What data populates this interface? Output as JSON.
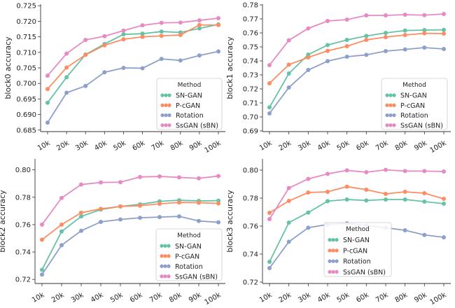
{
  "colors": {
    "SN-GAN": "#66c2a5",
    "P-cGAN": "#fc8d62",
    "Rotation": "#8da0cb",
    "SsGAN (sBN)": "#e78ac3"
  },
  "chart_data": [
    {
      "type": "line",
      "ylabel": "block0 accuracy",
      "categories": [
        "10k",
        "20k",
        "30k",
        "40k",
        "50k",
        "60k",
        "70k",
        "80k",
        "90k",
        "100k"
      ],
      "yticks": [
        0.685,
        0.69,
        0.695,
        0.7,
        0.705,
        0.71,
        0.715,
        0.72,
        0.725
      ],
      "ytick_labels": [
        "0.685",
        "0.690",
        "0.695",
        "0.700",
        "0.705",
        "0.710",
        "0.715",
        "0.720",
        "0.725"
      ],
      "ylim": [
        0.6845,
        0.7255
      ],
      "legend": {
        "title": "Method",
        "position": "bottom-right"
      },
      "series": [
        {
          "name": "SN-GAN",
          "values": [
            0.6938,
            0.702,
            0.7093,
            0.7127,
            0.7158,
            0.716,
            0.7167,
            0.7164,
            0.7177,
            0.719
          ]
        },
        {
          "name": "P-cGAN",
          "values": [
            0.6982,
            0.7051,
            0.7092,
            0.7123,
            0.7142,
            0.715,
            0.7153,
            0.7156,
            0.7188,
            0.7188
          ]
        },
        {
          "name": "Rotation",
          "values": [
            0.6874,
            0.697,
            0.6992,
            0.7036,
            0.705,
            0.7049,
            0.7079,
            0.7074,
            0.709,
            0.7103
          ]
        },
        {
          "name": "SsGAN (sBN)",
          "values": [
            0.7025,
            0.7096,
            0.714,
            0.7152,
            0.717,
            0.7187,
            0.7195,
            0.7196,
            0.7203,
            0.721
          ]
        }
      ]
    },
    {
      "type": "line",
      "ylabel": "block1 accuracy",
      "categories": [
        "10k",
        "20k",
        "30k",
        "40k",
        "50k",
        "60k",
        "70k",
        "80k",
        "90k",
        "100k"
      ],
      "yticks": [
        0.69,
        0.7,
        0.71,
        0.72,
        0.73,
        0.74,
        0.75,
        0.76,
        0.77,
        0.78
      ],
      "ytick_labels": [
        "0.69",
        "0.70",
        "0.71",
        "0.72",
        "0.73",
        "0.74",
        "0.75",
        "0.76",
        "0.77",
        "0.78"
      ],
      "ylim": [
        0.6895,
        0.7805
      ],
      "legend": {
        "title": "Method",
        "position": "bottom-right"
      },
      "series": [
        {
          "name": "SN-GAN",
          "values": [
            0.7068,
            0.731,
            0.7445,
            0.7513,
            0.755,
            0.7578,
            0.76,
            0.7617,
            0.762,
            0.7622
          ]
        },
        {
          "name": "P-cGAN",
          "values": [
            0.724,
            0.7373,
            0.7425,
            0.7472,
            0.7505,
            0.755,
            0.757,
            0.7585,
            0.7597,
            0.7595
          ]
        },
        {
          "name": "Rotation",
          "values": [
            0.7025,
            0.721,
            0.7335,
            0.7398,
            0.743,
            0.7443,
            0.747,
            0.7482,
            0.7495,
            0.7485
          ]
        },
        {
          "name": "SsGAN (sBN)",
          "values": [
            0.737,
            0.7547,
            0.7632,
            0.7685,
            0.7695,
            0.7725,
            0.7725,
            0.773,
            0.7727,
            0.7735
          ]
        }
      ]
    },
    {
      "type": "line",
      "ylabel": "block2 accuracy",
      "categories": [
        "10k",
        "20k",
        "30k",
        "40k",
        "50k",
        "60k",
        "70k",
        "80k",
        "90k",
        "100k"
      ],
      "yticks": [
        0.72,
        0.74,
        0.76,
        0.78,
        0.8
      ],
      "ytick_labels": [
        "0.72",
        "0.74",
        "0.76",
        "0.78",
        "0.80"
      ],
      "ylim": [
        0.717,
        0.808
      ],
      "legend": {
        "title": "Method",
        "position": "bottom-right"
      },
      "series": [
        {
          "name": "SN-GAN",
          "values": [
            0.727,
            0.755,
            0.766,
            0.771,
            0.7733,
            0.7748,
            0.777,
            0.7778,
            0.7773,
            0.7775
          ]
        },
        {
          "name": "P-cGAN",
          "values": [
            0.749,
            0.76,
            0.7687,
            0.7715,
            0.7733,
            0.7738,
            0.7752,
            0.7762,
            0.776,
            0.7755
          ]
        },
        {
          "name": "Rotation",
          "values": [
            0.7235,
            0.745,
            0.7555,
            0.762,
            0.7638,
            0.765,
            0.7655,
            0.766,
            0.7627,
            0.7617
          ]
        },
        {
          "name": "SsGAN (sBN)",
          "values": [
            0.76,
            0.7795,
            0.7893,
            0.7908,
            0.791,
            0.7948,
            0.7952,
            0.7945,
            0.7938,
            0.7955
          ]
        }
      ]
    },
    {
      "type": "line",
      "ylabel": "block3 accuracy",
      "categories": [
        "10k",
        "20k",
        "30k",
        "40k",
        "50k",
        "60k",
        "70k",
        "80k",
        "90k",
        "100k"
      ],
      "yticks": [
        0.72,
        0.74,
        0.76,
        0.78,
        0.8
      ],
      "ytick_labels": [
        "0.72",
        "0.74",
        "0.76",
        "0.78",
        "0.80"
      ],
      "ylim": [
        0.719,
        0.808
      ],
      "legend": {
        "title": "Method",
        "position": "bottom-center"
      },
      "series": [
        {
          "name": "SN-GAN",
          "values": [
            0.7345,
            0.7625,
            0.7697,
            0.7778,
            0.779,
            0.7783,
            0.779,
            0.779,
            0.7775,
            0.776
          ]
        },
        {
          "name": "P-cGAN",
          "values": [
            0.7695,
            0.778,
            0.784,
            0.7845,
            0.7882,
            0.786,
            0.783,
            0.7845,
            0.7835,
            0.7795
          ]
        },
        {
          "name": "Rotation",
          "values": [
            0.73,
            0.7488,
            0.7588,
            0.7612,
            0.762,
            0.7605,
            0.7588,
            0.757,
            0.7537,
            0.752
          ]
        },
        {
          "name": "SsGAN (sBN)",
          "values": [
            0.765,
            0.7872,
            0.7937,
            0.7973,
            0.7998,
            0.7985,
            0.8002,
            0.7993,
            0.7993,
            0.799
          ]
        }
      ]
    }
  ]
}
